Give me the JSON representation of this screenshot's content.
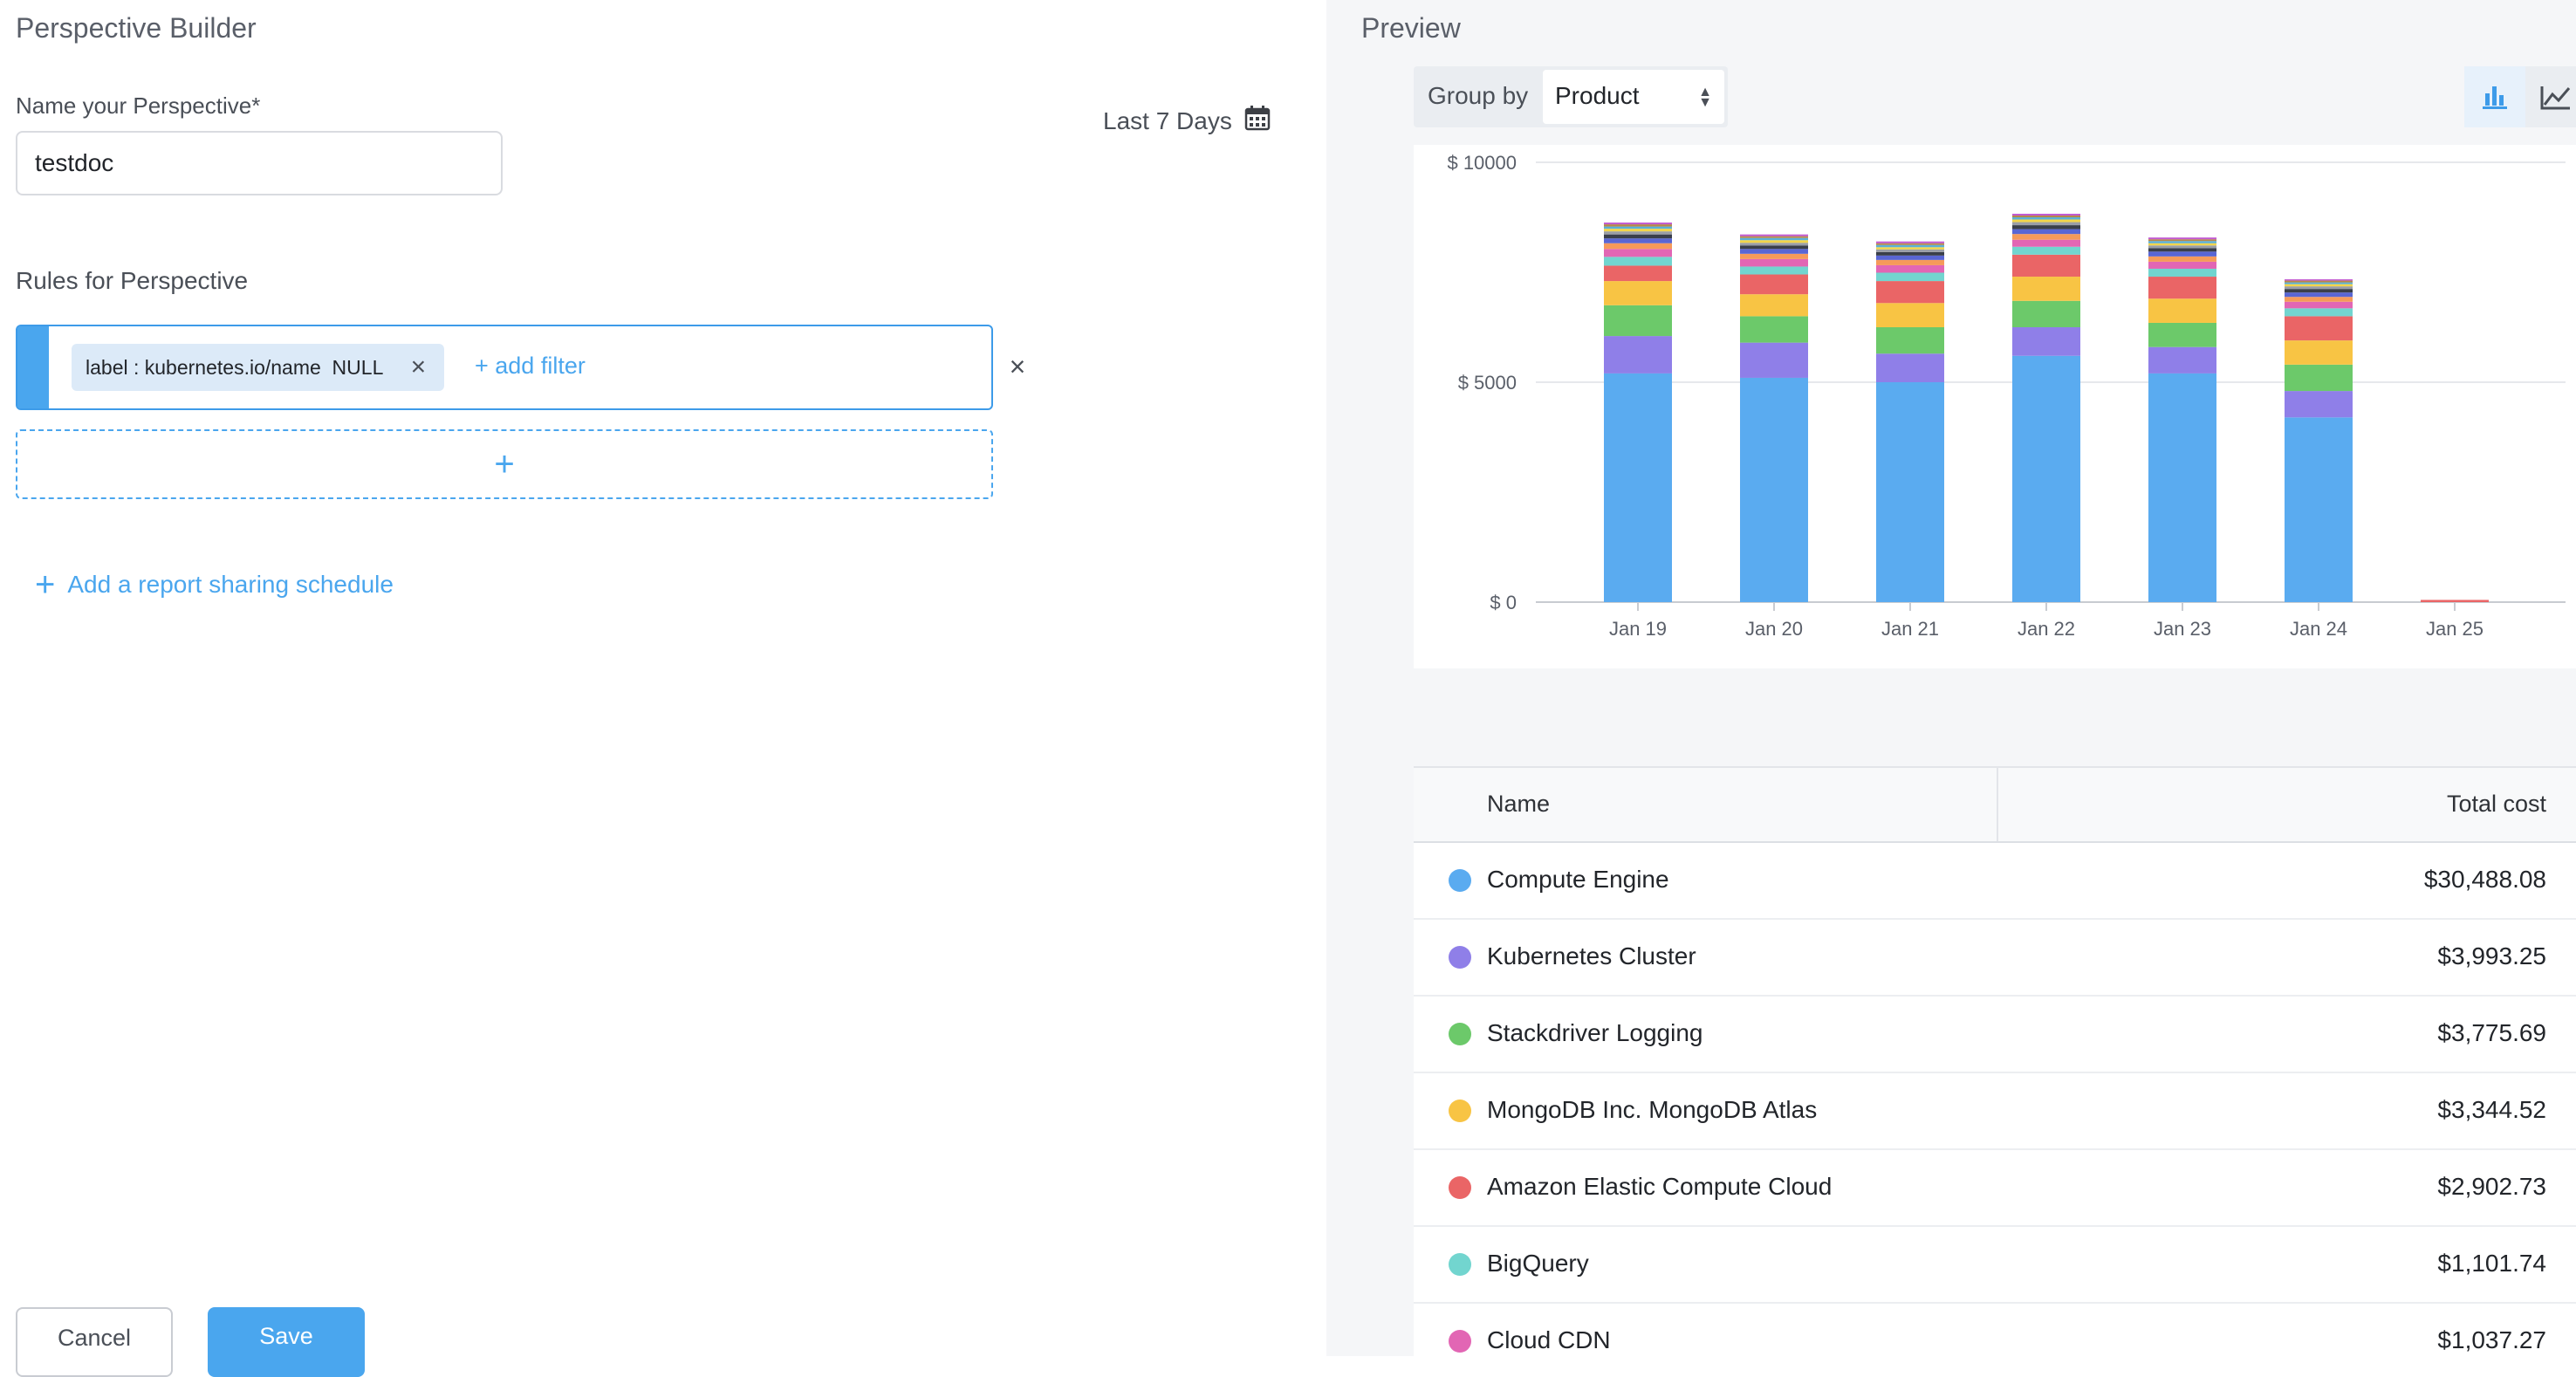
{
  "builder": {
    "title": "Perspective Builder",
    "name_label": "Name your Perspective*",
    "name_value": "testdoc",
    "date_range": "Last 7 Days",
    "rules_label": "Rules for Perspective",
    "filter_chip": "label : kubernetes.io/name  NULL",
    "add_filter": "+ add filter",
    "add_rule": "+",
    "share_schedule": "Add a report sharing schedule",
    "cancel": "Cancel",
    "save": "Save"
  },
  "preview": {
    "title": "Preview",
    "group_by_label": "Group by",
    "group_by_value": "Product",
    "chart_toggle": {
      "bar_icon": "bar-chart-icon",
      "line_icon": "line-chart-icon",
      "active": "bar"
    }
  },
  "chart_data": {
    "type": "bar",
    "stacked": true,
    "categories": [
      "Jan 19",
      "Jan 20",
      "Jan 21",
      "Jan 22",
      "Jan 23",
      "Jan 24",
      "Jan 25"
    ],
    "yticks": [
      "$ 10000",
      "$ 5000",
      "$ 0"
    ],
    "ylim": [
      0,
      10000
    ],
    "grid": true,
    "series": [
      {
        "name": "Compute Engine",
        "color": "#5aabf0",
        "values": [
          5200,
          5100,
          5000,
          5600,
          5200,
          4200,
          0
        ]
      },
      {
        "name": "Kubernetes Cluster",
        "color": "#8f7fe8",
        "values": [
          850,
          800,
          650,
          650,
          600,
          600,
          0
        ]
      },
      {
        "name": "Stackdriver Logging",
        "color": "#6cc96a",
        "values": [
          700,
          600,
          600,
          600,
          550,
          600,
          0
        ]
      },
      {
        "name": "MongoDB Inc. MongoDB Atlas",
        "color": "#f8c444",
        "values": [
          550,
          500,
          550,
          550,
          550,
          550,
          0
        ]
      },
      {
        "name": "Amazon Elastic Compute Cloud",
        "color": "#ea6566",
        "values": [
          350,
          450,
          500,
          500,
          500,
          550,
          50
        ]
      },
      {
        "name": "BigQuery",
        "color": "#72d5cf",
        "values": [
          200,
          180,
          190,
          180,
          180,
          180,
          0
        ]
      },
      {
        "name": "Cloud CDN",
        "color": "#e266b4",
        "values": [
          180,
          170,
          170,
          160,
          160,
          150,
          0
        ]
      },
      {
        "color": "#f59a5a",
        "values": [
          130,
          120,
          120,
          130,
          120,
          110,
          0
        ]
      },
      {
        "color": "#5966d4",
        "values": [
          110,
          110,
          100,
          110,
          110,
          100,
          0
        ]
      },
      {
        "color": "#3a3f4a",
        "values": [
          90,
          80,
          80,
          90,
          80,
          80,
          0
        ]
      },
      {
        "color": "#9a9ea6",
        "values": [
          70,
          60,
          60,
          70,
          60,
          60,
          0
        ]
      },
      {
        "color": "#f2d54a",
        "values": [
          60,
          60,
          50,
          60,
          50,
          50,
          0
        ]
      },
      {
        "color": "#5ab0d8",
        "values": [
          50,
          50,
          50,
          50,
          50,
          40,
          0
        ]
      },
      {
        "color": "#b5884a",
        "values": [
          50,
          40,
          40,
          40,
          40,
          40,
          0
        ]
      },
      {
        "color": "#c25ad0",
        "values": [
          40,
          40,
          40,
          40,
          40,
          30,
          0
        ]
      }
    ]
  },
  "table": {
    "col_name": "Name",
    "col_cost": "Total cost",
    "rows": [
      {
        "name": "Compute Engine",
        "cost": "$30,488.08",
        "color": "#5aabf0"
      },
      {
        "name": "Kubernetes Cluster",
        "cost": "$3,993.25",
        "color": "#8f7fe8"
      },
      {
        "name": "Stackdriver Logging",
        "cost": "$3,775.69",
        "color": "#6cc96a"
      },
      {
        "name": "MongoDB Inc. MongoDB Atlas",
        "cost": "$3,344.52",
        "color": "#f8c444"
      },
      {
        "name": "Amazon Elastic Compute Cloud",
        "cost": "$2,902.73",
        "color": "#ea6566"
      },
      {
        "name": "BigQuery",
        "cost": "$1,101.74",
        "color": "#72d5cf"
      },
      {
        "name": "Cloud CDN",
        "cost": "$1,037.27",
        "color": "#e266b4"
      }
    ]
  }
}
